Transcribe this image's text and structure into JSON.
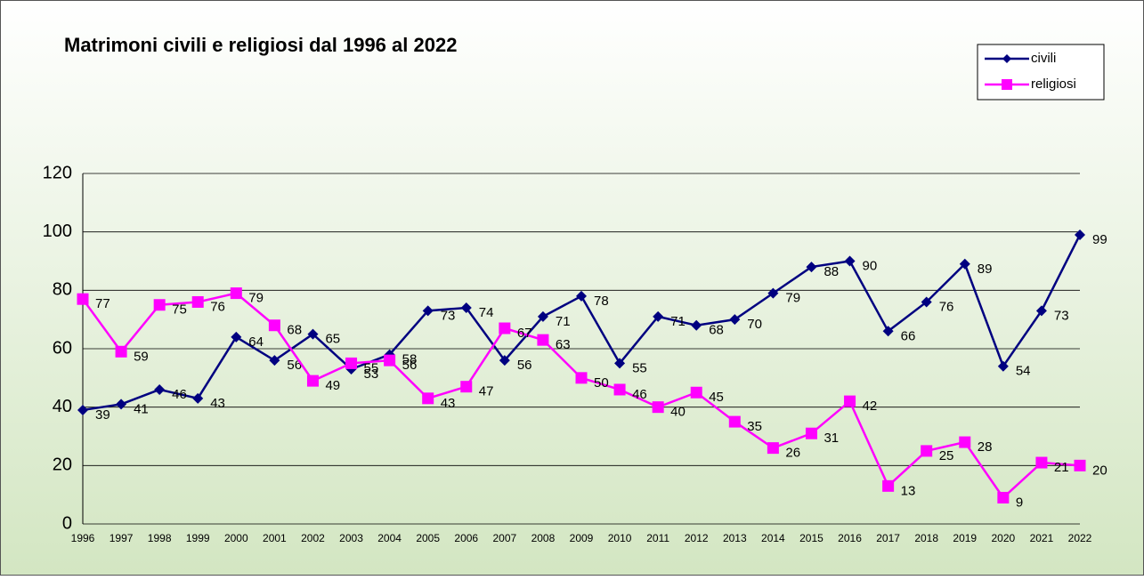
{
  "chart_data": {
    "type": "line",
    "title": "Matrimoni civili e religiosi dal 1996 al 2022",
    "categories": [
      "1996",
      "1997",
      "1998",
      "1999",
      "2000",
      "2001",
      "2002",
      "2003",
      "2004",
      "2005",
      "2006",
      "2007",
      "2008",
      "2009",
      "2010",
      "2011",
      "2012",
      "2013",
      "2014",
      "2015",
      "2016",
      "2017",
      "2018",
      "2019",
      "2020",
      "2021",
      "2022"
    ],
    "series": [
      {
        "name": "civili",
        "color": "#000080",
        "marker": "diamond",
        "values": [
          39,
          41,
          46,
          43,
          64,
          56,
          65,
          53,
          58,
          73,
          74,
          56,
          71,
          78,
          55,
          71,
          68,
          70,
          79,
          88,
          90,
          66,
          76,
          89,
          54,
          73,
          99
        ]
      },
      {
        "name": "religiosi",
        "color": "#ff00ff",
        "marker": "square",
        "values": [
          77,
          59,
          75,
          76,
          79,
          68,
          49,
          55,
          56,
          43,
          47,
          67,
          63,
          50,
          46,
          40,
          45,
          35,
          26,
          31,
          42,
          13,
          25,
          28,
          9,
          21,
          20
        ]
      }
    ],
    "ylim": [
      0,
      120
    ],
    "yticks": [
      0,
      20,
      40,
      60,
      80,
      100,
      120
    ],
    "grid": true,
    "legend": "top-right"
  }
}
